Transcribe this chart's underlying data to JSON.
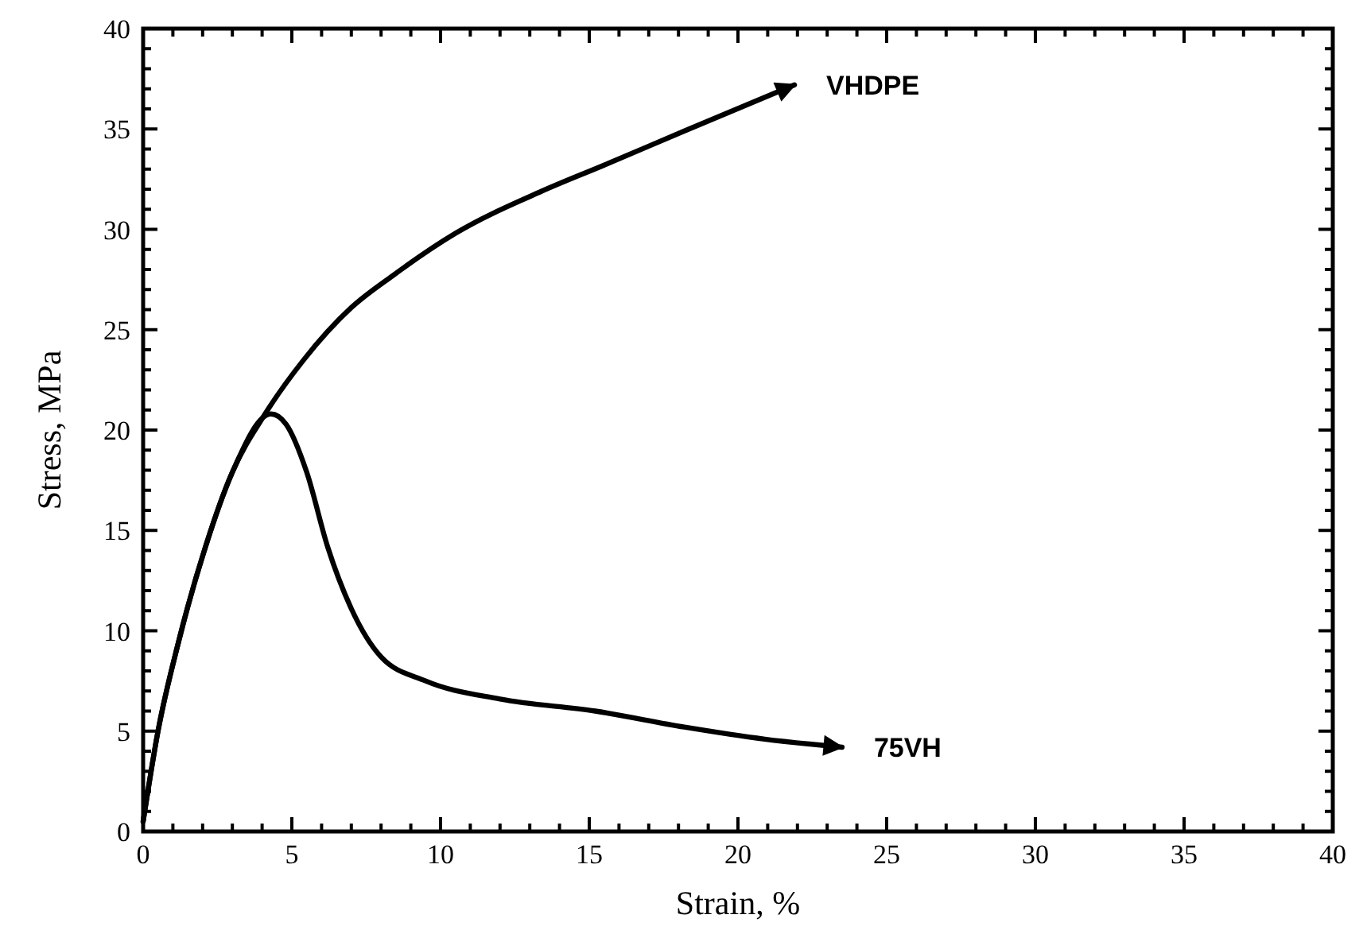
{
  "chart_data": {
    "type": "line",
    "xlabel": "Strain, %",
    "ylabel": "Stress, MPa",
    "xlim": [
      0,
      40
    ],
    "ylim": [
      0,
      40
    ],
    "xticks": [
      0,
      {
        "value": 1,
        "label": null
      },
      {
        "value": 2,
        "label": null
      },
      {
        "value": 3,
        "label": null
      },
      {
        "value": 4,
        "label": null
      },
      5,
      {
        "value": 6,
        "label": null
      },
      {
        "value": 7,
        "label": null
      },
      {
        "value": 8,
        "label": null
      },
      {
        "value": 9,
        "label": null
      },
      10,
      {
        "value": 11,
        "label": null
      },
      {
        "value": 12,
        "label": null
      },
      {
        "value": 13,
        "label": null
      },
      {
        "value": 14,
        "label": null
      },
      15,
      {
        "value": 16,
        "label": null
      },
      {
        "value": 17,
        "label": null
      },
      {
        "value": 18,
        "label": null
      },
      {
        "value": 19,
        "label": null
      },
      20,
      {
        "value": 21,
        "label": null
      },
      {
        "value": 22,
        "label": null
      },
      {
        "value": 23,
        "label": null
      },
      {
        "value": 24,
        "label": null
      },
      25,
      {
        "value": 26,
        "label": null
      },
      {
        "value": 27,
        "label": null
      },
      {
        "value": 28,
        "label": null
      },
      {
        "value": 29,
        "label": null
      },
      30,
      {
        "value": 31,
        "label": null
      },
      {
        "value": 32,
        "label": null
      },
      {
        "value": 33,
        "label": null
      },
      {
        "value": 34,
        "label": null
      },
      35,
      {
        "value": 36,
        "label": null
      },
      {
        "value": 37,
        "label": null
      },
      {
        "value": 38,
        "label": null
      },
      {
        "value": 39,
        "label": null
      },
      40
    ],
    "yticks": [
      0,
      {
        "value": 1,
        "label": null
      },
      {
        "value": 2,
        "label": null
      },
      {
        "value": 3,
        "label": null
      },
      {
        "value": 4,
        "label": null
      },
      5,
      {
        "value": 6,
        "label": null
      },
      {
        "value": 7,
        "label": null
      },
      {
        "value": 8,
        "label": null
      },
      {
        "value": 9,
        "label": null
      },
      10,
      {
        "value": 11,
        "label": null
      },
      {
        "value": 12,
        "label": null
      },
      {
        "value": 13,
        "label": null
      },
      {
        "value": 14,
        "label": null
      },
      15,
      {
        "value": 16,
        "label": null
      },
      {
        "value": 17,
        "label": null
      },
      {
        "value": 18,
        "label": null
      },
      {
        "value": 19,
        "label": null
      },
      20,
      {
        "value": 21,
        "label": null
      },
      {
        "value": 22,
        "label": null
      },
      {
        "value": 23,
        "label": null
      },
      {
        "value": 24,
        "label": null
      },
      25,
      {
        "value": 26,
        "label": null
      },
      {
        "value": 27,
        "label": null
      },
      {
        "value": 28,
        "label": null
      },
      {
        "value": 29,
        "label": null
      },
      30,
      {
        "value": 31,
        "label": null
      },
      {
        "value": 32,
        "label": null
      },
      {
        "value": 33,
        "label": null
      },
      {
        "value": 34,
        "label": null
      },
      35,
      {
        "value": 36,
        "label": null
      },
      {
        "value": 37,
        "label": null
      },
      {
        "value": 38,
        "label": null
      },
      {
        "value": 39,
        "label": null
      },
      40
    ],
    "grid": false,
    "marker": "none",
    "line_style": "solid",
    "series": [
      {
        "name": "VHDPE",
        "color": "#000000",
        "x": [
          0,
          0.5,
          1.2,
          2.1,
          3,
          4.1,
          5.4,
          7,
          8.4,
          10.5,
          13.4,
          15.5,
          18.2,
          21.9
        ],
        "values": [
          0.5,
          5,
          9.5,
          14.2,
          17.9,
          20.8,
          23.5,
          26.1,
          27.7,
          29.8,
          31.9,
          33.2,
          34.9,
          37.2
        ]
      },
      {
        "name": "75VH",
        "color": "#000000",
        "x": [
          0,
          0.5,
          1.2,
          2.1,
          3,
          4.3,
          4.8,
          5.5,
          6.2,
          7,
          8,
          9.5,
          12,
          15.2,
          18.2,
          20.9,
          23.5
        ],
        "values": [
          0.5,
          5,
          9.5,
          14.2,
          17.9,
          20.8,
          20.3,
          17.9,
          14.2,
          11.1,
          8.7,
          7.5,
          6.6,
          6,
          5.2,
          4.6,
          4.2
        ]
      }
    ]
  }
}
